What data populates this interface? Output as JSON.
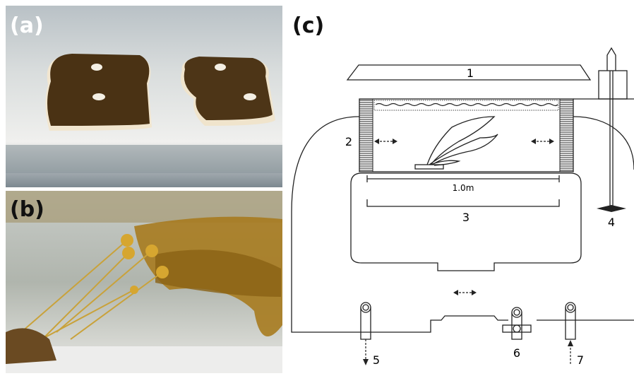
{
  "panels": [
    {
      "label": "(a)"
    },
    {
      "label": "(b)"
    },
    {
      "label": "(c)"
    }
  ],
  "diagram": {
    "scale_label": "1.0m",
    "parts": [
      "1",
      "2",
      "3",
      "4",
      "5",
      "6",
      "7"
    ]
  }
}
